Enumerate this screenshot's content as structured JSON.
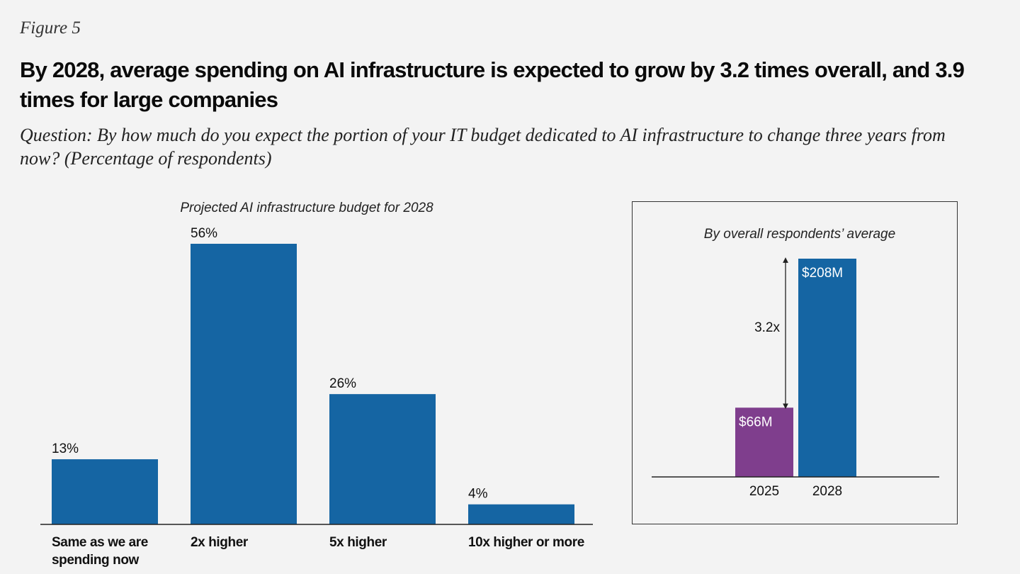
{
  "figure_label": "Figure 5",
  "title": "By 2028, average spending on AI infrastructure is expected to grow by 3.2 times overall, and 3.9 times for large companies",
  "subtitle": "Question: By how much do you expect the portion of your IT budget dedicated to AI infrastructure to change three years from now? (Percentage of respondents)",
  "colors": {
    "bar_blue": "#1565a3",
    "bar_purple": "#7f3e8d",
    "axis": "#222222"
  },
  "chart_data": [
    {
      "type": "bar",
      "title": "Projected AI infrastructure budget for 2028",
      "categories": [
        [
          "Same as we are",
          "spending now"
        ],
        [
          "2x higher"
        ],
        [
          "5x higher"
        ],
        [
          "10x higher or more"
        ]
      ],
      "values": [
        13,
        56,
        26,
        4
      ],
      "labels": [
        "13%",
        "56%",
        "26%",
        "4%"
      ],
      "unit": "%",
      "ylim": [
        0,
        56
      ],
      "xlabel": "",
      "ylabel": "",
      "grid": false
    },
    {
      "type": "bar",
      "title": "By overall respondents’ average",
      "categories": [
        "2025",
        "2028"
      ],
      "values": [
        66,
        208
      ],
      "labels": [
        "$66M",
        "$208M"
      ],
      "unit": "$M",
      "ylim": [
        0,
        208
      ],
      "annotation": "3.2x",
      "xlabel": "",
      "ylabel": "",
      "grid": false
    }
  ]
}
